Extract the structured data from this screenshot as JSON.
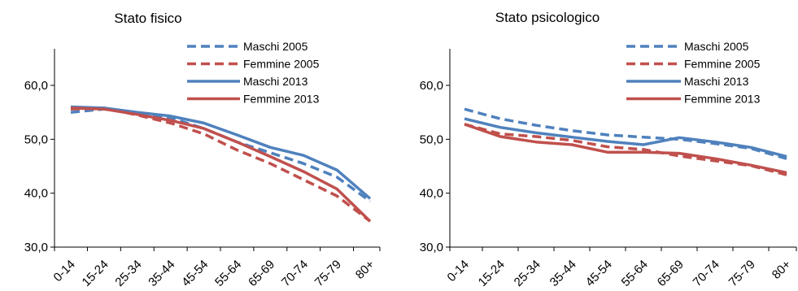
{
  "chart_data": [
    {
      "type": "line",
      "title": "Stato fisico",
      "categories": [
        "0-14",
        "15-24",
        "25-34",
        "35-44",
        "45-54",
        "55-64",
        "65-69",
        "70-74",
        "75-79",
        "80+"
      ],
      "ylim": [
        30,
        65
      ],
      "yticks": [
        "30,0",
        "40,0",
        "50,0",
        "60,0"
      ],
      "grid": false,
      "legend_position": "top-right",
      "series": [
        {
          "name": "Maschi 2005",
          "color": "#4f81bd",
          "dash": true,
          "values": [
            55.0,
            55.6,
            55.0,
            54.0,
            52.0,
            49.5,
            47.5,
            45.5,
            43.0,
            38.5
          ]
        },
        {
          "name": "Femmine 2005",
          "color": "#c0504d",
          "dash": true,
          "values": [
            55.6,
            55.8,
            54.5,
            53.0,
            51.0,
            48.0,
            45.5,
            42.5,
            39.5,
            34.8
          ]
        },
        {
          "name": "Maschi 2013",
          "color": "#4f81bd",
          "dash": false,
          "values": [
            56.0,
            55.8,
            55.0,
            54.3,
            53.0,
            50.8,
            48.5,
            47.0,
            44.3,
            39.0
          ]
        },
        {
          "name": "Femmine 2013",
          "color": "#c0504d",
          "dash": false,
          "values": [
            55.8,
            55.6,
            54.6,
            53.5,
            52.0,
            49.5,
            46.8,
            44.0,
            40.8,
            34.8
          ]
        }
      ]
    },
    {
      "type": "line",
      "title": "Stato psicologico",
      "categories": [
        "0-14",
        "15-24",
        "25-34",
        "35-44",
        "45-54",
        "55-64",
        "65-69",
        "70-74",
        "75-79",
        "80+"
      ],
      "ylim": [
        30,
        65
      ],
      "yticks": [
        "30,0",
        "40,0",
        "50,0",
        "60,0"
      ],
      "grid": false,
      "legend_position": "top-right",
      "series": [
        {
          "name": "Maschi 2005",
          "color": "#4f81bd",
          "dash": true,
          "values": [
            55.6,
            53.8,
            52.6,
            51.6,
            50.8,
            50.4,
            50.0,
            49.2,
            48.3,
            46.4
          ]
        },
        {
          "name": "Femmine 2005",
          "color": "#c0504d",
          "dash": true,
          "values": [
            52.8,
            51.0,
            50.5,
            49.8,
            48.6,
            48.1,
            46.9,
            46.0,
            45.1,
            43.4
          ]
        },
        {
          "name": "Maschi 2013",
          "color": "#4f81bd",
          "dash": false,
          "values": [
            53.8,
            52.2,
            51.2,
            50.4,
            49.6,
            49.0,
            50.3,
            49.5,
            48.5,
            46.8
          ]
        },
        {
          "name": "Femmine 2013",
          "color": "#c0504d",
          "dash": false,
          "values": [
            52.8,
            50.5,
            49.5,
            49.0,
            47.6,
            47.6,
            47.4,
            46.4,
            45.2,
            43.8
          ]
        }
      ]
    }
  ]
}
